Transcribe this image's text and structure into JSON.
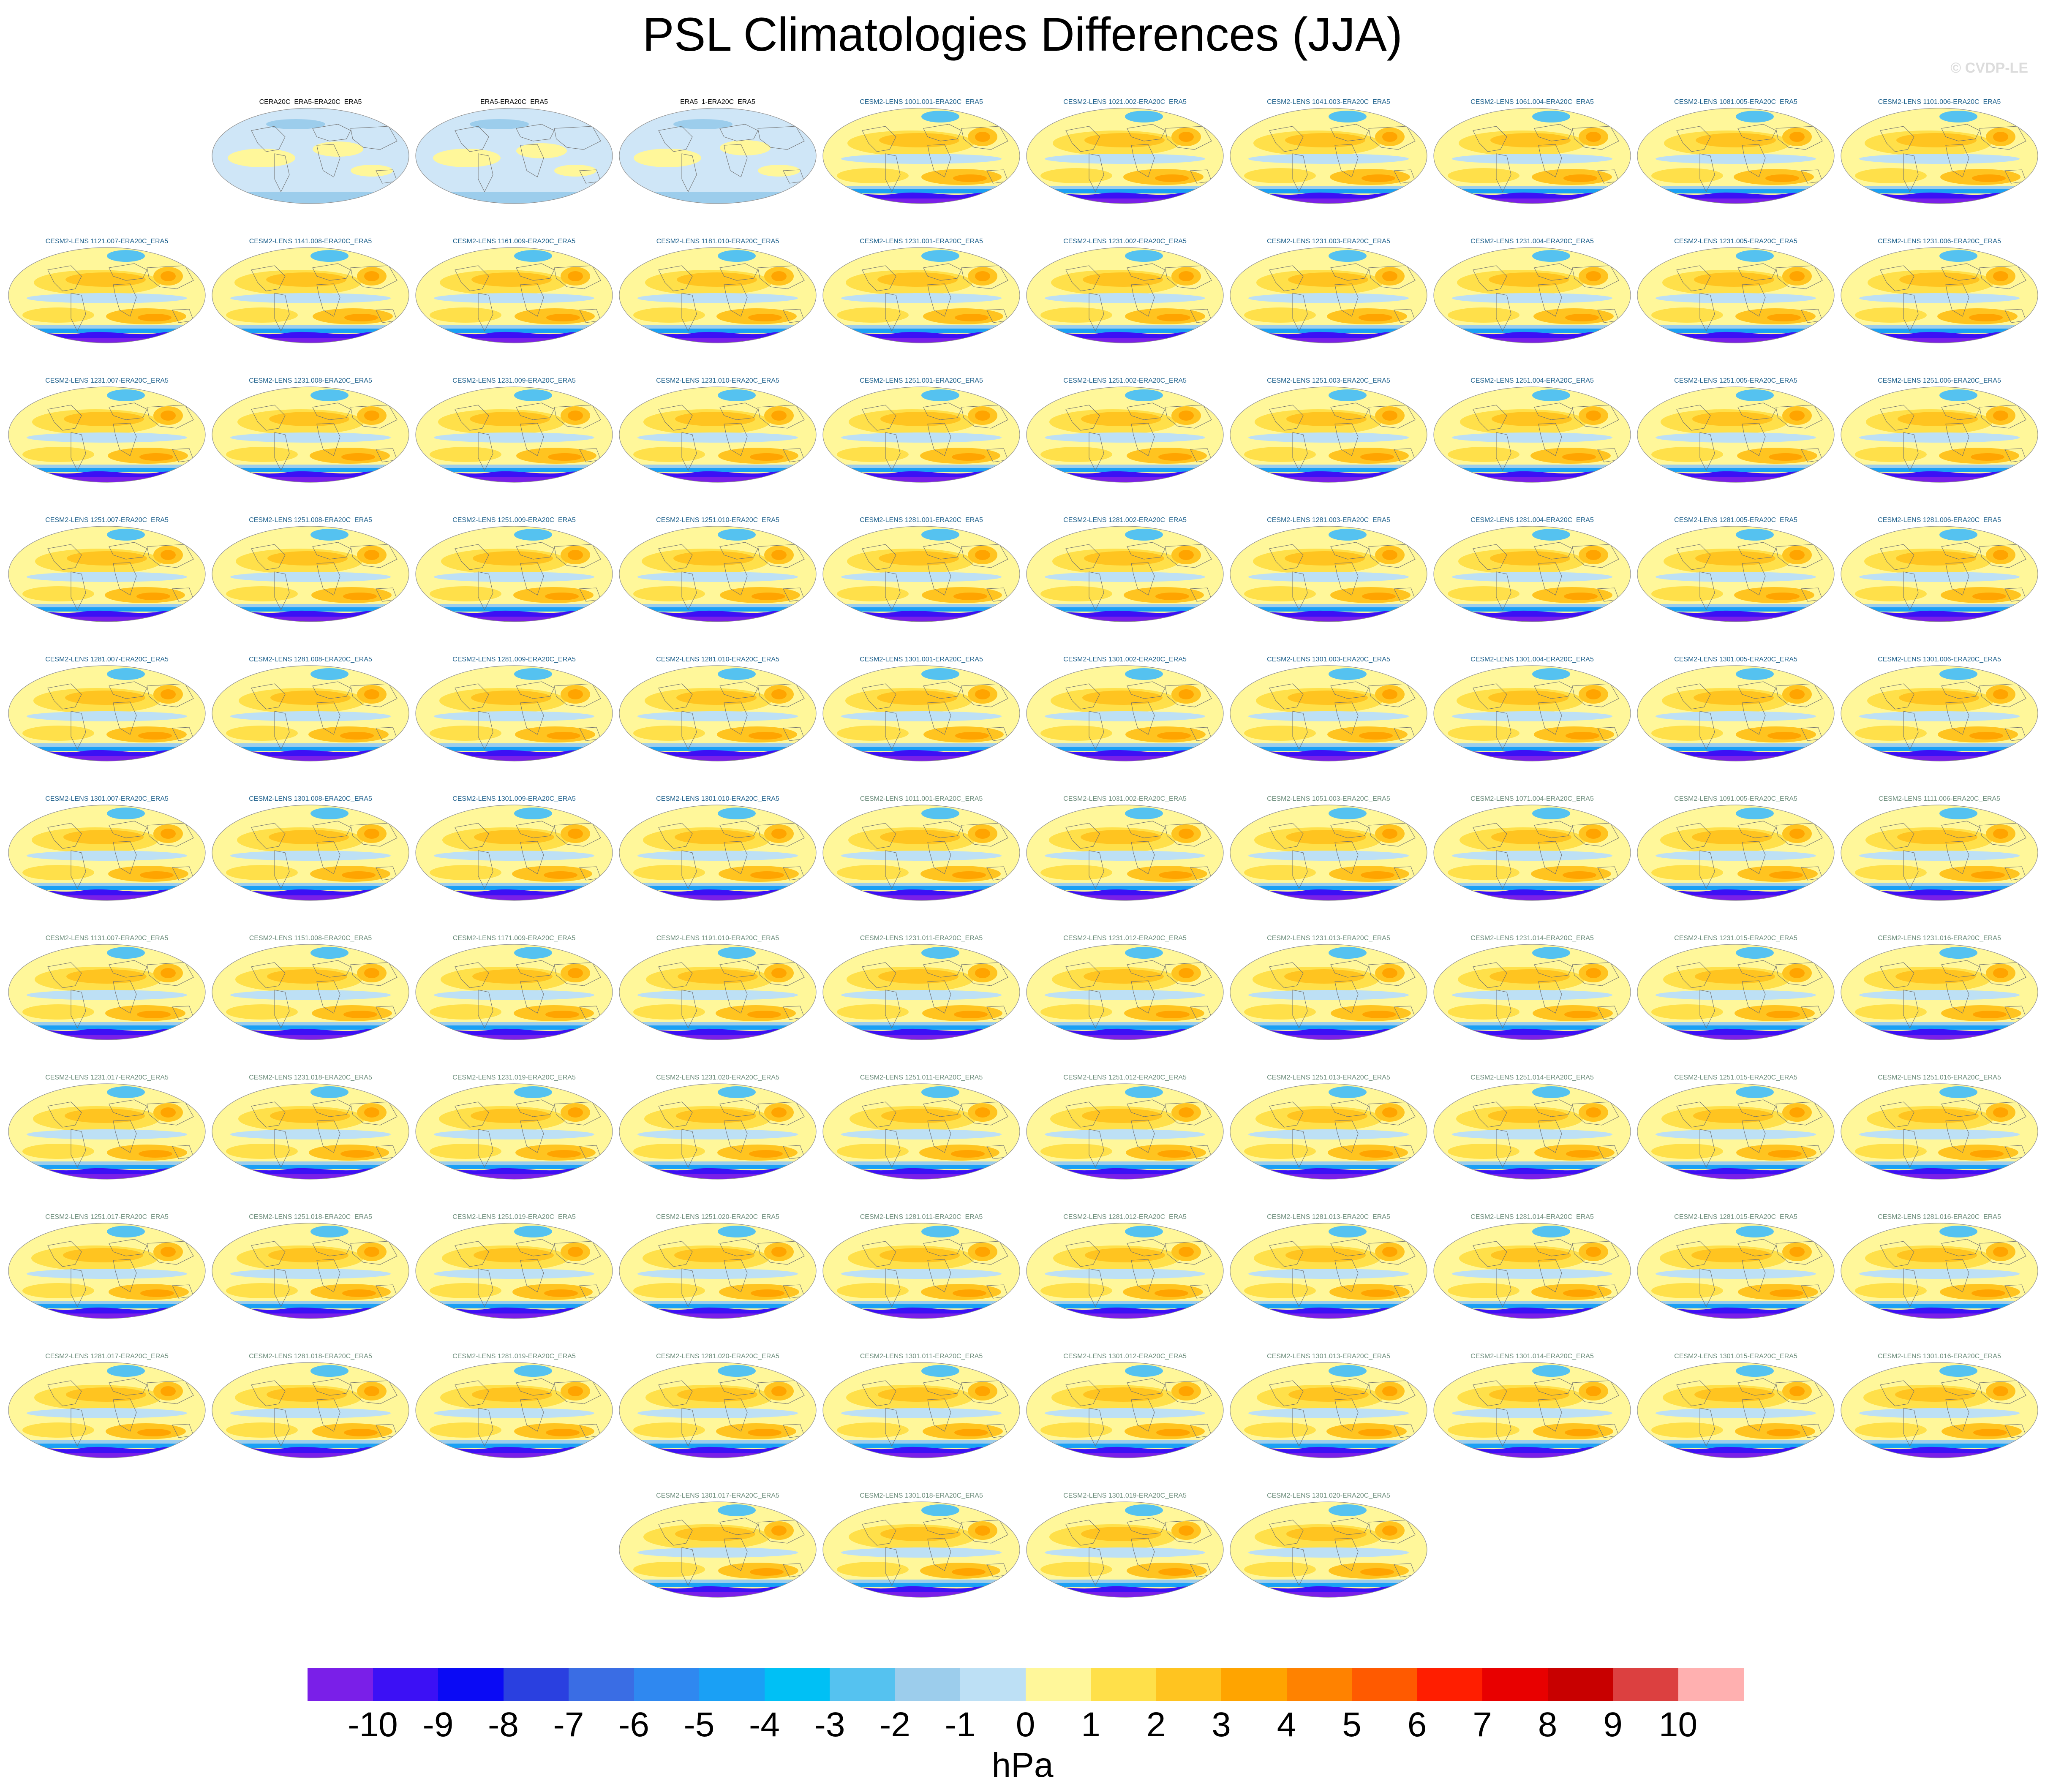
{
  "title": "PSL Climatologies Differences (JJA)",
  "watermark": "© CVDP-LE",
  "panel_rows": [
    [
      "CERA20C_ERA5-ERA20C_ERA5",
      "ERA5-ERA20C_ERA5",
      "ERA5_1-ERA20C_ERA5",
      "CESM2-LENS 1001.001-ERA20C_ERA5",
      "CESM2-LENS 1021.002-ERA20C_ERA5",
      "CESM2-LENS 1041.003-ERA20C_ERA5",
      "CESM2-LENS 1061.004-ERA20C_ERA5",
      "CESM2-LENS 1081.005-ERA20C_ERA5",
      "CESM2-LENS 1101.006-ERA20C_ERA5"
    ],
    [
      "CESM2-LENS 1121.007-ERA20C_ERA5",
      "CESM2-LENS 1141.008-ERA20C_ERA5",
      "CESM2-LENS 1161.009-ERA20C_ERA5",
      "CESM2-LENS 1181.010-ERA20C_ERA5",
      "CESM2-LENS 1231.001-ERA20C_ERA5",
      "CESM2-LENS 1231.002-ERA20C_ERA5",
      "CESM2-LENS 1231.003-ERA20C_ERA5",
      "CESM2-LENS 1231.004-ERA20C_ERA5",
      "CESM2-LENS 1231.005-ERA20C_ERA5",
      "CESM2-LENS 1231.006-ERA20C_ERA5"
    ],
    [
      "CESM2-LENS 1231.007-ERA20C_ERA5",
      "CESM2-LENS 1231.008-ERA20C_ERA5",
      "CESM2-LENS 1231.009-ERA20C_ERA5",
      "CESM2-LENS 1231.010-ERA20C_ERA5",
      "CESM2-LENS 1251.001-ERA20C_ERA5",
      "CESM2-LENS 1251.002-ERA20C_ERA5",
      "CESM2-LENS 1251.003-ERA20C_ERA5",
      "CESM2-LENS 1251.004-ERA20C_ERA5",
      "CESM2-LENS 1251.005-ERA20C_ERA5",
      "CESM2-LENS 1251.006-ERA20C_ERA5"
    ],
    [
      "CESM2-LENS 1251.007-ERA20C_ERA5",
      "CESM2-LENS 1251.008-ERA20C_ERA5",
      "CESM2-LENS 1251.009-ERA20C_ERA5",
      "CESM2-LENS 1251.010-ERA20C_ERA5",
      "CESM2-LENS 1281.001-ERA20C_ERA5",
      "CESM2-LENS 1281.002-ERA20C_ERA5",
      "CESM2-LENS 1281.003-ERA20C_ERA5",
      "CESM2-LENS 1281.004-ERA20C_ERA5",
      "CESM2-LENS 1281.005-ERA20C_ERA5",
      "CESM2-LENS 1281.006-ERA20C_ERA5"
    ],
    [
      "CESM2-LENS 1281.007-ERA20C_ERA5",
      "CESM2-LENS 1281.008-ERA20C_ERA5",
      "CESM2-LENS 1281.009-ERA20C_ERA5",
      "CESM2-LENS 1281.010-ERA20C_ERA5",
      "CESM2-LENS 1301.001-ERA20C_ERA5",
      "CESM2-LENS 1301.002-ERA20C_ERA5",
      "CESM2-LENS 1301.003-ERA20C_ERA5",
      "CESM2-LENS 1301.004-ERA20C_ERA5",
      "CESM2-LENS 1301.005-ERA20C_ERA5",
      "CESM2-LENS 1301.006-ERA20C_ERA5"
    ],
    [
      "CESM2-LENS 1301.007-ERA20C_ERA5",
      "CESM2-LENS 1301.008-ERA20C_ERA5",
      "CESM2-LENS 1301.009-ERA20C_ERA5",
      "CESM2-LENS 1301.010-ERA20C_ERA5",
      "CESM2-LENS 1011.001-ERA20C_ERA5",
      "CESM2-LENS 1031.002-ERA20C_ERA5",
      "CESM2-LENS 1051.003-ERA20C_ERA5",
      "CESM2-LENS 1071.004-ERA20C_ERA5",
      "CESM2-LENS 1091.005-ERA20C_ERA5",
      "CESM2-LENS 1111.006-ERA20C_ERA5"
    ],
    [
      "CESM2-LENS 1131.007-ERA20C_ERA5",
      "CESM2-LENS 1151.008-ERA20C_ERA5",
      "CESM2-LENS 1171.009-ERA20C_ERA5",
      "CESM2-LENS 1191.010-ERA20C_ERA5",
      "CESM2-LENS 1231.011-ERA20C_ERA5",
      "CESM2-LENS 1231.012-ERA20C_ERA5",
      "CESM2-LENS 1231.013-ERA20C_ERA5",
      "CESM2-LENS 1231.014-ERA20C_ERA5",
      "CESM2-LENS 1231.015-ERA20C_ERA5",
      "CESM2-LENS 1231.016-ERA20C_ERA5"
    ],
    [
      "CESM2-LENS 1231.017-ERA20C_ERA5",
      "CESM2-LENS 1231.018-ERA20C_ERA5",
      "CESM2-LENS 1231.019-ERA20C_ERA5",
      "CESM2-LENS 1231.020-ERA20C_ERA5",
      "CESM2-LENS 1251.011-ERA20C_ERA5",
      "CESM2-LENS 1251.012-ERA20C_ERA5",
      "CESM2-LENS 1251.013-ERA20C_ERA5",
      "CESM2-LENS 1251.014-ERA20C_ERA5",
      "CESM2-LENS 1251.015-ERA20C_ERA5",
      "CESM2-LENS 1251.016-ERA20C_ERA5"
    ],
    [
      "CESM2-LENS 1251.017-ERA20C_ERA5",
      "CESM2-LENS 1251.018-ERA20C_ERA5",
      "CESM2-LENS 1251.019-ERA20C_ERA5",
      "CESM2-LENS 1251.020-ERA20C_ERA5",
      "CESM2-LENS 1281.011-ERA20C_ERA5",
      "CESM2-LENS 1281.012-ERA20C_ERA5",
      "CESM2-LENS 1281.013-ERA20C_ERA5",
      "CESM2-LENS 1281.014-ERA20C_ERA5",
      "CESM2-LENS 1281.015-ERA20C_ERA5",
      "CESM2-LENS 1281.016-ERA20C_ERA5"
    ],
    [
      "CESM2-LENS 1281.017-ERA20C_ERA5",
      "CESM2-LENS 1281.018-ERA20C_ERA5",
      "CESM2-LENS 1281.019-ERA20C_ERA5",
      "CESM2-LENS 1281.020-ERA20C_ERA5",
      "CESM2-LENS 1301.011-ERA20C_ERA5",
      "CESM2-LENS 1301.012-ERA20C_ERA5",
      "CESM2-LENS 1301.013-ERA20C_ERA5",
      "CESM2-LENS 1301.014-ERA20C_ERA5",
      "CESM2-LENS 1301.015-ERA20C_ERA5",
      "CESM2-LENS 1301.016-ERA20C_ERA5"
    ],
    [
      "CESM2-LENS 1301.017-ERA20C_ERA5",
      "CESM2-LENS 1301.018-ERA20C_ERA5",
      "CESM2-LENS 1301.019-ERA20C_ERA5",
      "CESM2-LENS 1301.020-ERA20C_ERA5"
    ]
  ],
  "label_colors": {
    "observations": "#000000",
    "group_a": "#1b5e8a",
    "group_b": "#6b8c7a"
  },
  "colorbar": {
    "ticks": [
      "-10",
      "-9",
      "-8",
      "-7",
      "-6",
      "-5",
      "-4",
      "-3",
      "-2",
      "-1",
      "0",
      "1",
      "2",
      "3",
      "4",
      "5",
      "6",
      "7",
      "8",
      "9",
      "10"
    ],
    "colors": [
      "#7a1fe8",
      "#3c10f5",
      "#0a0af5",
      "#2a40e0",
      "#3a6de4",
      "#2f88f0",
      "#1aa0f5",
      "#00c0f5",
      "#55c2f0",
      "#9ccdec",
      "#bde0f5",
      "#fff79a",
      "#ffe04a",
      "#ffc420",
      "#ffa400",
      "#ff8200",
      "#ff5a00",
      "#ff1e00",
      "#e80000",
      "#c80000",
      "#dc4040",
      "#ffb0b0"
    ],
    "units": "hPa"
  }
}
